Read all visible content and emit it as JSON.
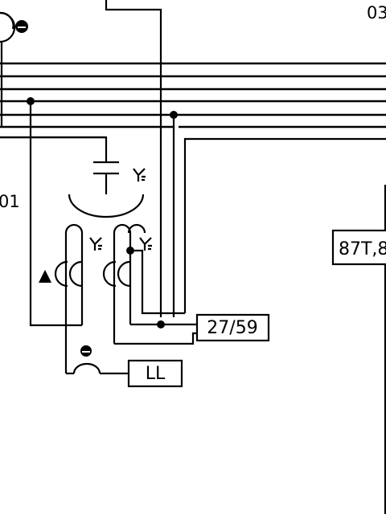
{
  "diagram": {
    "labels": {
      "top_right_ref": "03",
      "left_ref": "01",
      "relay_87t": "87T,8",
      "relay_2759": "27/59",
      "relay_ll": "LL"
    },
    "symbols": {
      "grounded_wye": "wye-ground-icon",
      "delta": "delta-icon",
      "grounding_terminal": "ground-terminal-icon"
    },
    "line_color": "#000000",
    "background": "#ffffff"
  }
}
